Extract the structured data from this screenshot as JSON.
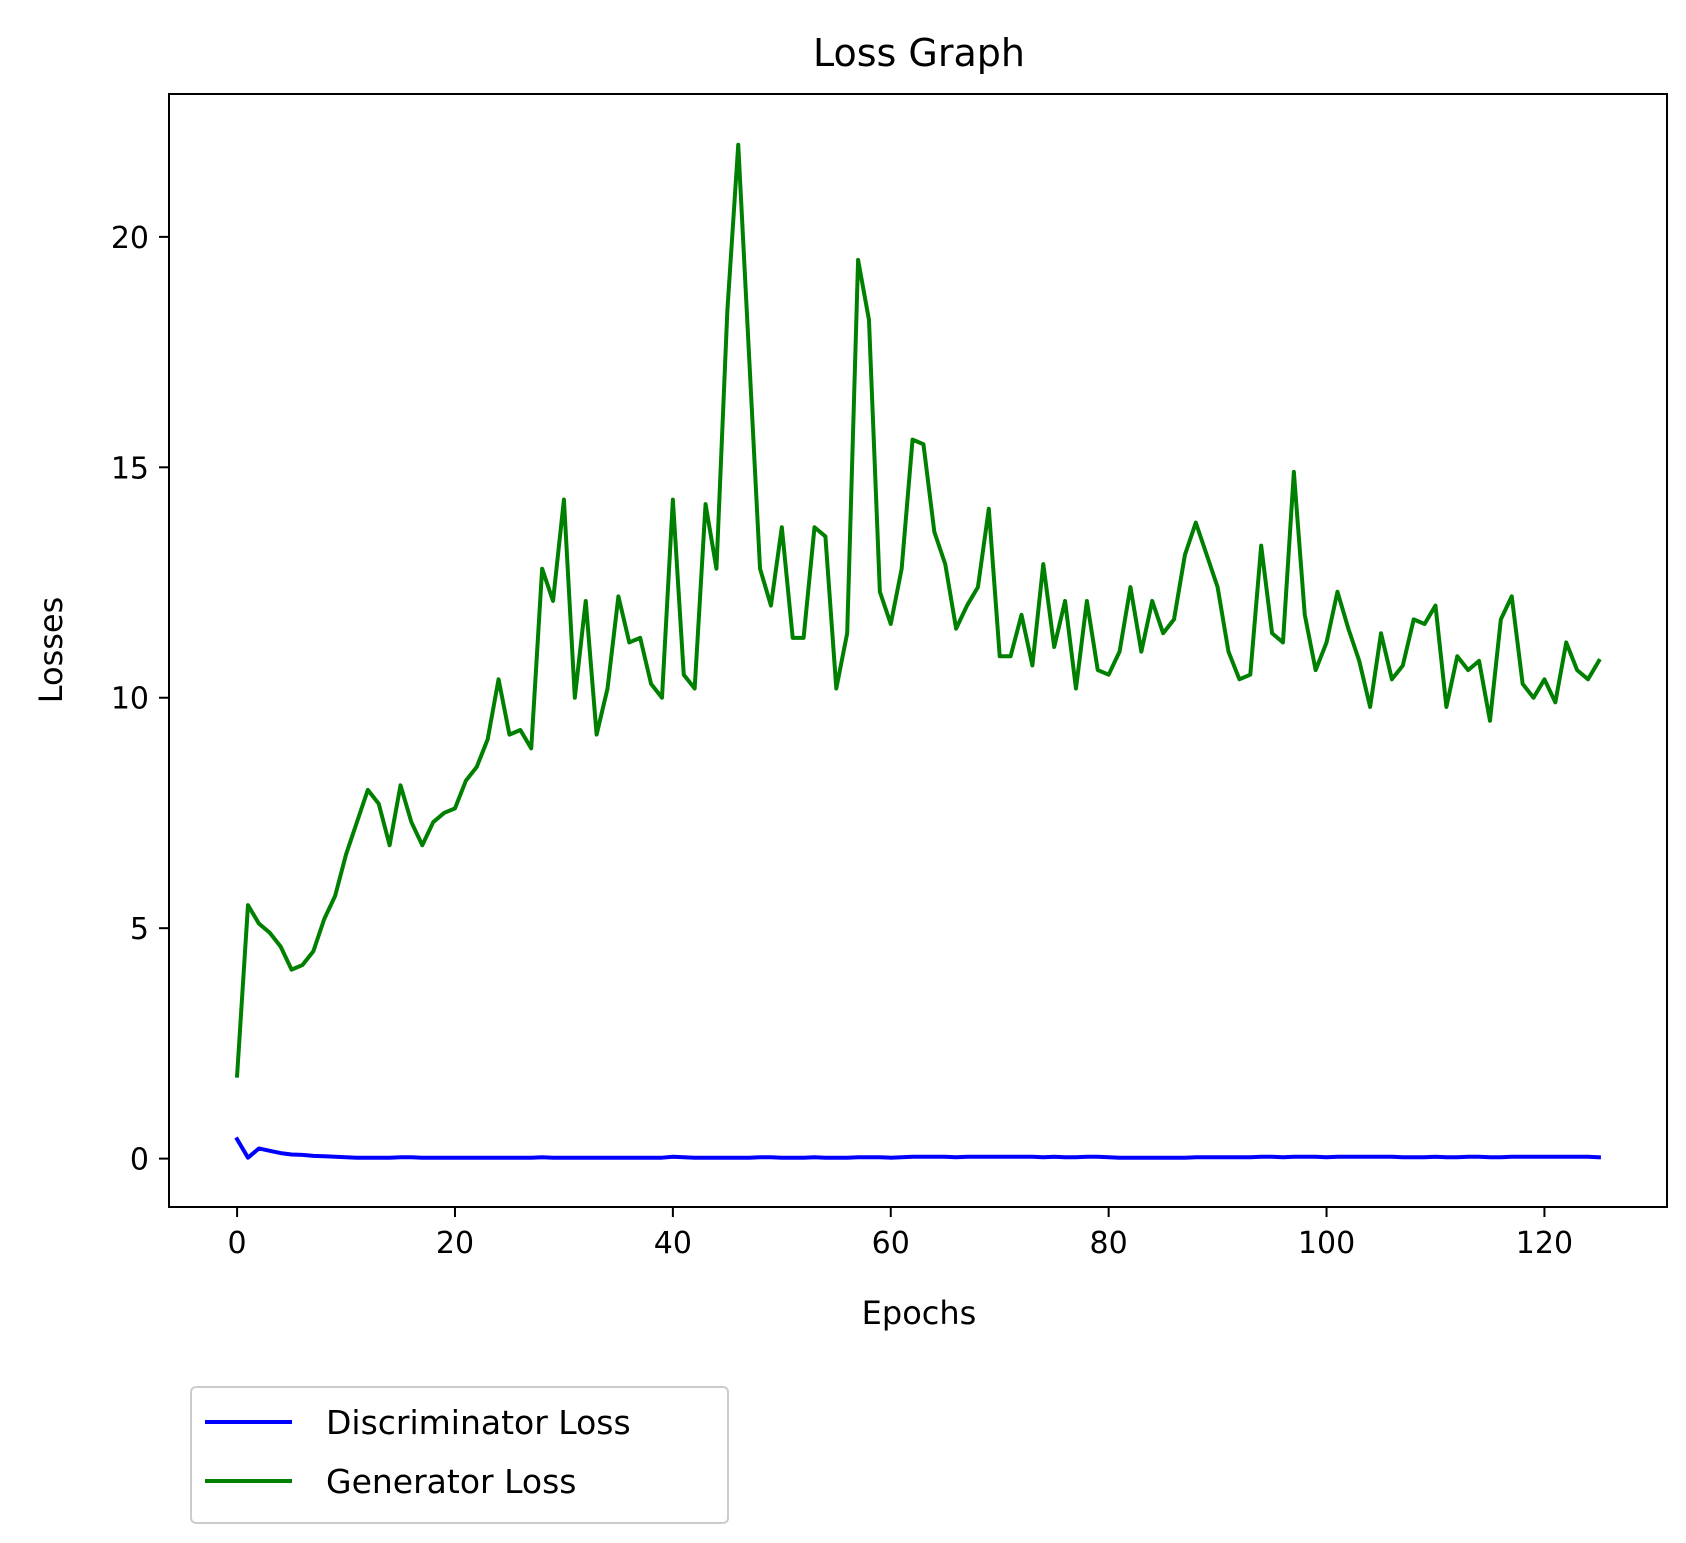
{
  "chart_data": {
    "type": "line",
    "title": "Loss Graph",
    "xlabel": "Epochs",
    "ylabel": "Losses",
    "xlim": [
      -6.25,
      131.25
    ],
    "ylim": [
      -1.05,
      23.1
    ],
    "xticks": [
      0,
      20,
      40,
      60,
      80,
      100,
      120
    ],
    "yticks": [
      0,
      5,
      10,
      15,
      20
    ],
    "grid": false,
    "legend": "below-left",
    "series": [
      {
        "name": "Discriminator Loss",
        "color": "#0000ff",
        "x": [
          0,
          1,
          2,
          3,
          4,
          5,
          6,
          7,
          8,
          9,
          10,
          11,
          12,
          13,
          14,
          15,
          16,
          17,
          18,
          19,
          20,
          21,
          22,
          23,
          24,
          25,
          26,
          27,
          28,
          29,
          30,
          31,
          32,
          33,
          34,
          35,
          36,
          37,
          38,
          39,
          40,
          41,
          42,
          43,
          44,
          45,
          46,
          47,
          48,
          49,
          50,
          51,
          52,
          53,
          54,
          55,
          56,
          57,
          58,
          59,
          60,
          61,
          62,
          63,
          64,
          65,
          66,
          67,
          68,
          69,
          70,
          71,
          72,
          73,
          74,
          75,
          76,
          77,
          78,
          79,
          80,
          81,
          82,
          83,
          84,
          85,
          86,
          87,
          88,
          89,
          90,
          91,
          92,
          93,
          94,
          95,
          96,
          97,
          98,
          99,
          100,
          101,
          102,
          103,
          104,
          105,
          106,
          107,
          108,
          109,
          110,
          111,
          112,
          113,
          114,
          115,
          116,
          117,
          118,
          119,
          120,
          121,
          122,
          123,
          124,
          125
        ],
        "values": [
          0.42,
          0.02,
          0.22,
          0.17,
          0.12,
          0.09,
          0.08,
          0.06,
          0.05,
          0.04,
          0.03,
          0.02,
          0.02,
          0.02,
          0.02,
          0.03,
          0.03,
          0.02,
          0.02,
          0.02,
          0.02,
          0.02,
          0.02,
          0.02,
          0.02,
          0.02,
          0.02,
          0.02,
          0.03,
          0.02,
          0.02,
          0.02,
          0.02,
          0.02,
          0.02,
          0.02,
          0.02,
          0.02,
          0.02,
          0.02,
          0.04,
          0.03,
          0.02,
          0.02,
          0.02,
          0.02,
          0.02,
          0.02,
          0.03,
          0.03,
          0.02,
          0.02,
          0.02,
          0.03,
          0.02,
          0.02,
          0.02,
          0.03,
          0.03,
          0.03,
          0.02,
          0.03,
          0.04,
          0.04,
          0.04,
          0.04,
          0.03,
          0.04,
          0.04,
          0.04,
          0.04,
          0.04,
          0.04,
          0.04,
          0.03,
          0.04,
          0.03,
          0.03,
          0.04,
          0.04,
          0.03,
          0.02,
          0.02,
          0.02,
          0.02,
          0.02,
          0.02,
          0.02,
          0.03,
          0.03,
          0.03,
          0.03,
          0.03,
          0.03,
          0.04,
          0.04,
          0.03,
          0.04,
          0.04,
          0.04,
          0.03,
          0.04,
          0.04,
          0.04,
          0.04,
          0.04,
          0.04,
          0.03,
          0.03,
          0.03,
          0.04,
          0.03,
          0.03,
          0.04,
          0.04,
          0.03,
          0.03,
          0.04,
          0.04,
          0.04,
          0.04,
          0.04,
          0.04,
          0.04,
          0.04,
          0.03
        ]
      },
      {
        "name": "Generator Loss",
        "color": "#008000",
        "x": [
          0,
          1,
          2,
          3,
          4,
          5,
          6,
          7,
          8,
          9,
          10,
          11,
          12,
          13,
          14,
          15,
          16,
          17,
          18,
          19,
          20,
          21,
          22,
          23,
          24,
          25,
          26,
          27,
          28,
          29,
          30,
          31,
          32,
          33,
          34,
          35,
          36,
          37,
          38,
          39,
          40,
          41,
          42,
          43,
          44,
          45,
          46,
          47,
          48,
          49,
          50,
          51,
          52,
          53,
          54,
          55,
          56,
          57,
          58,
          59,
          60,
          61,
          62,
          63,
          64,
          65,
          66,
          67,
          68,
          69,
          70,
          71,
          72,
          73,
          74,
          75,
          76,
          77,
          78,
          79,
          80,
          81,
          82,
          83,
          84,
          85,
          86,
          87,
          88,
          89,
          90,
          91,
          92,
          93,
          94,
          95,
          96,
          97,
          98,
          99,
          100,
          101,
          102,
          103,
          104,
          105,
          106,
          107,
          108,
          109,
          110,
          111,
          112,
          113,
          114,
          115,
          116,
          117,
          118,
          119,
          120,
          121,
          122,
          123,
          124,
          125
        ],
        "values": [
          1.8,
          5.5,
          5.1,
          4.9,
          4.6,
          4.1,
          4.2,
          4.5,
          5.2,
          5.7,
          6.6,
          7.3,
          8.0,
          7.7,
          6.8,
          8.1,
          7.3,
          6.8,
          7.3,
          7.5,
          7.6,
          8.2,
          8.5,
          9.1,
          10.4,
          9.2,
          9.3,
          8.9,
          12.8,
          12.1,
          14.3,
          10.0,
          12.1,
          9.2,
          10.2,
          12.2,
          11.2,
          11.3,
          10.3,
          10.0,
          14.3,
          10.5,
          10.2,
          14.2,
          12.8,
          18.4,
          22.0,
          17.4,
          12.8,
          12.0,
          13.7,
          11.3,
          11.3,
          13.7,
          13.5,
          10.2,
          11.4,
          19.5,
          18.2,
          12.3,
          11.6,
          12.8,
          15.6,
          15.5,
          13.6,
          12.9,
          11.5,
          12.0,
          12.4,
          14.1,
          10.9,
          10.9,
          11.8,
          10.7,
          12.9,
          11.1,
          12.1,
          10.2,
          12.1,
          10.6,
          10.5,
          11.0,
          12.4,
          11.0,
          12.1,
          11.4,
          11.7,
          13.1,
          13.8,
          13.1,
          12.4,
          11.0,
          10.4,
          10.5,
          13.3,
          11.4,
          11.2,
          14.9,
          11.8,
          10.6,
          11.2,
          12.3,
          11.5,
          10.8,
          9.8,
          11.4,
          10.4,
          10.7,
          11.7,
          11.6,
          12.0,
          9.8,
          10.9,
          10.6,
          10.8,
          9.5,
          11.7,
          12.2,
          10.3,
          10.0,
          10.4,
          9.9,
          11.2,
          10.6,
          10.4,
          10.8
        ]
      }
    ]
  }
}
